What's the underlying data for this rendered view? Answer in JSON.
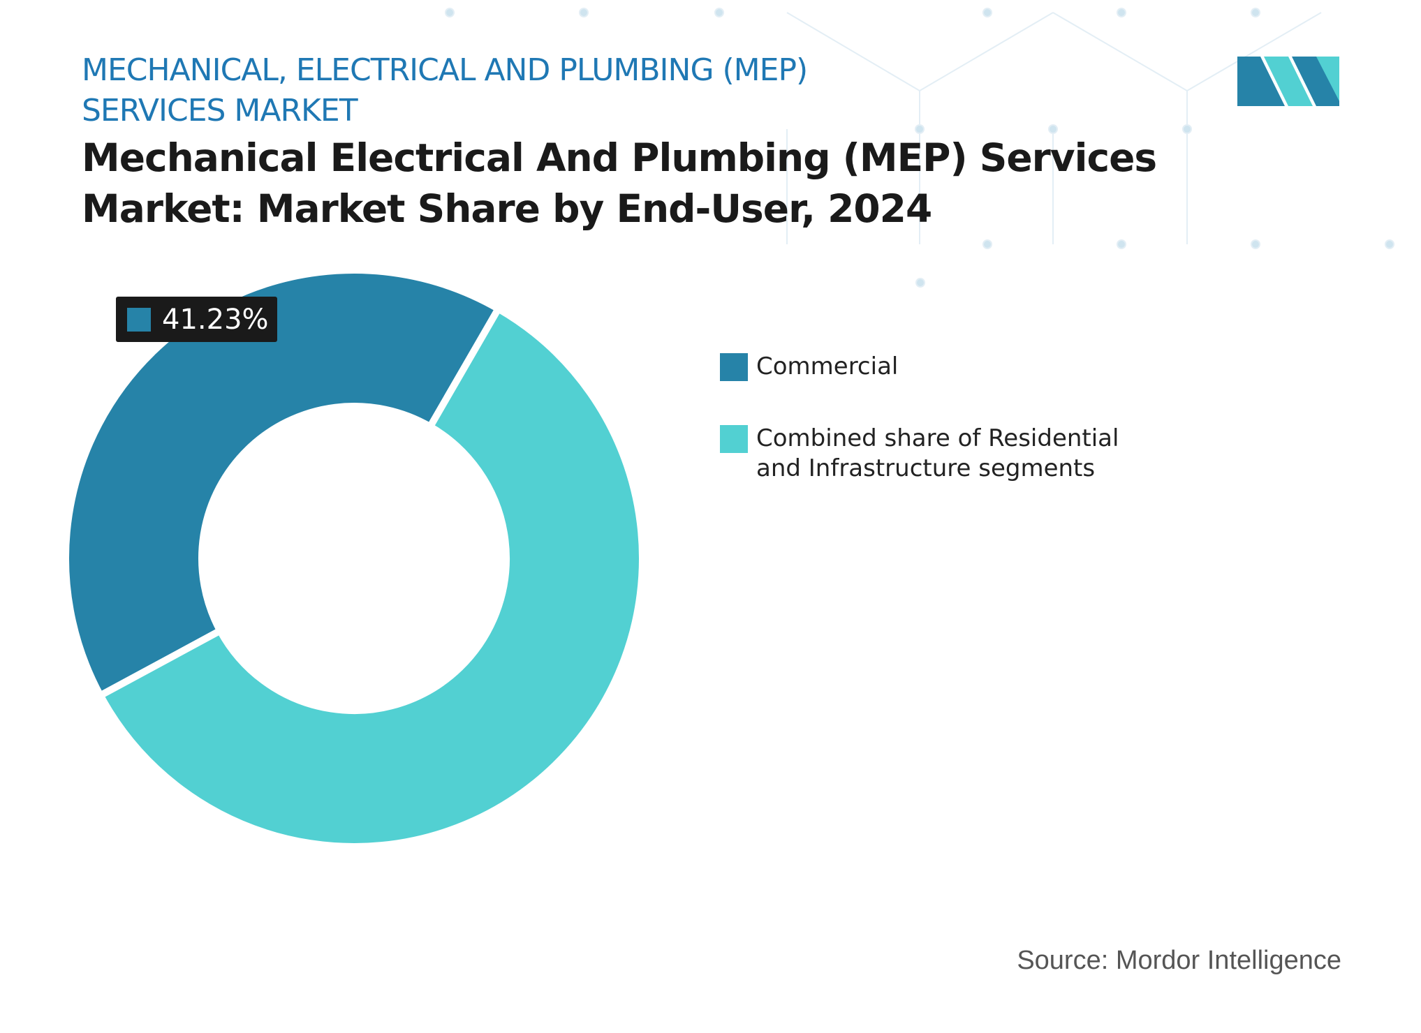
{
  "chart_data": {
    "type": "pie",
    "subtitle": "MECHANICAL, ELECTRICAL AND PLUMBING (MEP)\nSERVICES MARKET",
    "title": "Mechanical Electrical And Plumbing (MEP) Services\nMarket: Market Share by End-User, 2024",
    "series": [
      {
        "name": "Commercial",
        "color": "#2683a8"
      },
      {
        "name": "Combined share of Residential\nand Infrastructure segments",
        "color": "#52d0d2"
      }
    ],
    "values": [
      41.23,
      58.77
    ],
    "value_labels": [
      "41.23%",
      null
    ],
    "source": "Source: Mordor Intelligence"
  }
}
